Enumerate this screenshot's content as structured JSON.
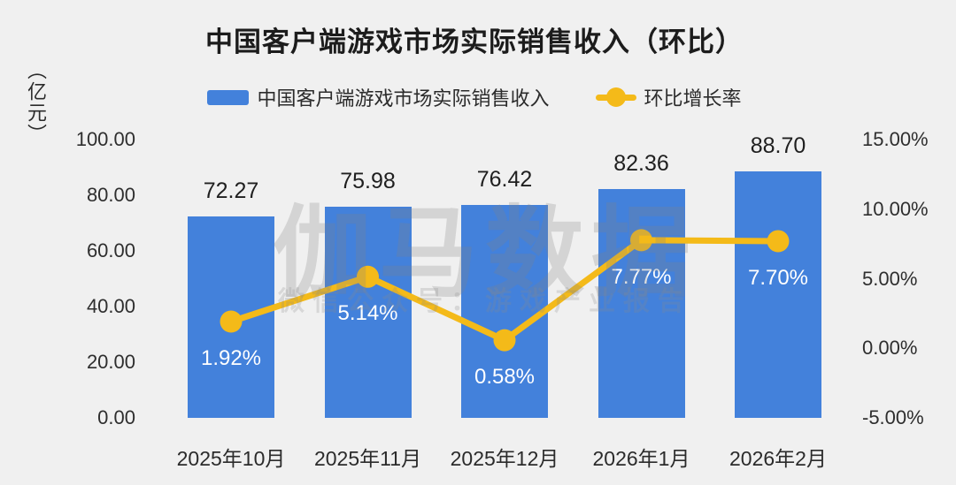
{
  "chart_data": {
    "type": "bar",
    "subtype": "bar+line dual axis",
    "title": "中国客户端游戏市场实际销售收入（环比）",
    "unit_label": "（亿元）",
    "categories": [
      "2025年10月",
      "2025年11月",
      "2025年12月",
      "2026年1月",
      "2026年2月"
    ],
    "series": [
      {
        "name": "中国客户端游戏市场实际销售收入",
        "type": "bar",
        "axis": "left",
        "color": "#4381db",
        "values": [
          72.27,
          75.98,
          76.42,
          82.36,
          88.7
        ],
        "labels": [
          "72.27",
          "75.98",
          "76.42",
          "82.36",
          "88.70"
        ]
      },
      {
        "name": "环比增长率",
        "type": "line",
        "axis": "right",
        "color": "#f4ba19",
        "values": [
          1.92,
          5.14,
          0.58,
          7.77,
          7.7
        ],
        "labels": [
          "1.92%",
          "5.14%",
          "0.58%",
          "7.77%",
          "7.70%"
        ]
      }
    ],
    "left_axis": {
      "min": 0,
      "max": 100,
      "tick_labels": [
        "100.00",
        "80.00",
        "60.00",
        "40.00",
        "20.00",
        "0.00"
      ],
      "tick_values": [
        100,
        80,
        60,
        40,
        20,
        0
      ]
    },
    "right_axis": {
      "min": -5,
      "max": 15,
      "tick_labels": [
        "15.00%",
        "10.00%",
        "5.00%",
        "0.00%",
        "-5.00%"
      ],
      "tick_values": [
        15,
        10,
        5,
        0,
        -5
      ]
    },
    "legend_position": "top",
    "grid": false
  },
  "watermark": {
    "line1": "伽马数据",
    "line2": "微信公众号：游戏产业报告"
  },
  "colors": {
    "background": "#f0f0f0",
    "bar": "#4381db",
    "line": "#f4ba19",
    "title_text": "#1c1c1c",
    "axis_text": "#2e2e2e",
    "bar_value_text": "#1f1f1f",
    "pct_label_text": "#ffffff"
  }
}
